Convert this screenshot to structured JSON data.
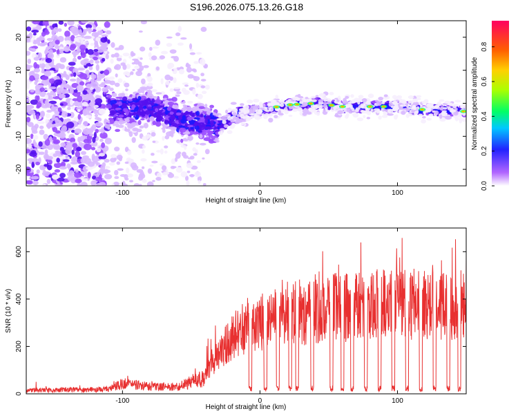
{
  "title": "S196.2026.075.13.26.G18",
  "colors": {
    "snr_line": "#e83030",
    "axis": "#000000",
    "background": "#ffffff"
  },
  "chart_data": [
    {
      "type": "heatmap",
      "xlabel": "Height of straight line (km)",
      "ylabel": "Frequency (Hz)",
      "xlim": [
        -170,
        150
      ],
      "ylim": [
        -25,
        25
      ],
      "xticks": [
        -100,
        0,
        100
      ],
      "xtick_labels": [
        "-100",
        "0",
        "100"
      ],
      "yticks": [
        -20,
        -10,
        0,
        10,
        20
      ],
      "ytick_labels": [
        "-20",
        "-10",
        "0",
        "10",
        "20"
      ],
      "colorbar": {
        "label": "Normalized spectral amplitude",
        "range": [
          0,
          0.95
        ],
        "ticks": [
          0.0,
          0.2,
          0.4,
          0.6,
          0.8
        ],
        "tick_labels": [
          "0.0",
          "0.2",
          "0.4",
          "0.6",
          "0.8"
        ]
      },
      "ridge_center_hz": [
        {
          "x": -110,
          "f": -2
        },
        {
          "x": -80,
          "f": -1
        },
        {
          "x": -60,
          "f": -5
        },
        {
          "x": -40,
          "f": -6
        },
        {
          "x": -30,
          "f": -7
        },
        {
          "x": -15,
          "f": -3
        },
        {
          "x": 0,
          "f": -2
        },
        {
          "x": 20,
          "f": -0.5
        },
        {
          "x": 40,
          "f": 0
        },
        {
          "x": 60,
          "f": -1
        },
        {
          "x": 80,
          "f": -1
        },
        {
          "x": 100,
          "f": -1
        },
        {
          "x": 120,
          "f": -2
        },
        {
          "x": 150,
          "f": -2.5
        }
      ],
      "peak_positions_km": [
        12,
        22,
        27,
        37,
        52,
        60,
        80,
        90,
        118,
        148
      ]
    },
    {
      "type": "line",
      "xlabel": "Height of straight line (km)",
      "ylabel": "SNR (10 * v/v)",
      "xlim": [
        -170,
        150
      ],
      "ylim": [
        0,
        700
      ],
      "xticks": [
        -100,
        0,
        100
      ],
      "xtick_labels": [
        "-100",
        "0",
        "100"
      ],
      "yticks": [
        0,
        200,
        400,
        600
      ],
      "ytick_labels": [
        "0",
        "200",
        "400",
        "600"
      ],
      "series": [
        {
          "name": "SNR",
          "envelope": [
            {
              "x": -170,
              "y": 20
            },
            {
              "x": -110,
              "y": 25
            },
            {
              "x": -100,
              "y": 60
            },
            {
              "x": -80,
              "y": 40
            },
            {
              "x": -60,
              "y": 40
            },
            {
              "x": -40,
              "y": 90
            },
            {
              "x": -30,
              "y": 180
            },
            {
              "x": -20,
              "y": 260
            },
            {
              "x": -10,
              "y": 310
            },
            {
              "x": 0,
              "y": 330
            },
            {
              "x": 20,
              "y": 350
            },
            {
              "x": 30,
              "y": 370
            },
            {
              "x": 50,
              "y": 390
            },
            {
              "x": 70,
              "y": 400
            },
            {
              "x": 100,
              "y": 410
            },
            {
              "x": 130,
              "y": 410
            },
            {
              "x": 150,
              "y": 400
            }
          ],
          "dropout_positions_km": [
            -7,
            4,
            13,
            22,
            27,
            38,
            52,
            60,
            67,
            77,
            87,
            97,
            107,
            117,
            127,
            137,
            145
          ]
        }
      ]
    }
  ]
}
